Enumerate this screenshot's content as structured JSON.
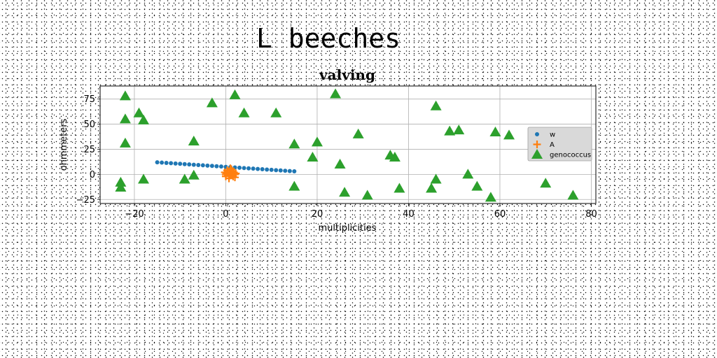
{
  "figure_title": "L beeches",
  "chart_data": {
    "type": "scatter",
    "title": "valving",
    "xlabel": "multiplicities",
    "ylabel": "ohmmeters",
    "xlim": [
      -27.5,
      81
    ],
    "ylim": [
      -29,
      88
    ],
    "xticks": [
      -20,
      0,
      20,
      40,
      60,
      80
    ],
    "yticks": [
      -25,
      0,
      25,
      50,
      75
    ],
    "grid": true,
    "legend_position": "center-right",
    "series": [
      {
        "name": "w",
        "marker": "point",
        "color": "#1f77b4",
        "x": [
          -15,
          -14,
          -13,
          -12,
          -11,
          -10,
          -9,
          -8,
          -7,
          -6,
          -5,
          -4,
          -3,
          -2,
          -1,
          0,
          1,
          2,
          3,
          4,
          5,
          6,
          7,
          8,
          9,
          10,
          11,
          12,
          13,
          14,
          15
        ],
        "y": [
          12,
          11.7,
          11.4,
          11.1,
          10.8,
          10.5,
          10.2,
          9.9,
          9.6,
          9.3,
          9,
          8.7,
          8.4,
          8.1,
          7.8,
          7.5,
          7.2,
          6.9,
          6.6,
          6.3,
          6,
          5.7,
          5.4,
          5.1,
          4.8,
          4.5,
          4.2,
          3.9,
          3.6,
          3.3,
          3
        ]
      },
      {
        "name": "A",
        "marker": "plus",
        "color": "#ff7f0e",
        "x": [
          0,
          0.5,
          1,
          1.5,
          2,
          0,
          1,
          2,
          0.3,
          1.2,
          1.8,
          0.7,
          0.2,
          1.6,
          -0.2,
          2.2,
          1
        ],
        "y": [
          0,
          2,
          1,
          3,
          0,
          -2,
          -1,
          -3,
          4,
          5,
          2,
          -4,
          1,
          -2,
          2,
          1,
          6
        ]
      },
      {
        "name": "genococcus",
        "marker": "triangle",
        "color": "#2ca02c",
        "x": [
          -22,
          -22,
          -22,
          -23,
          -23,
          -19,
          -18,
          -18,
          -9,
          -7,
          -7,
          -3,
          2,
          4,
          11,
          15,
          15,
          19,
          20,
          24,
          25,
          26,
          29,
          31,
          36,
          37,
          38,
          45,
          46,
          46,
          49,
          51,
          53,
          55,
          58,
          59,
          62,
          70,
          76
        ],
        "y": [
          78,
          55,
          31,
          -8,
          -13,
          61,
          54,
          -5,
          -5,
          33,
          -1,
          71,
          79,
          61,
          61,
          30,
          -12,
          17,
          32,
          80,
          10,
          -18,
          40,
          -21,
          19,
          17,
          -14,
          -14,
          68,
          -5,
          43,
          44,
          0,
          -12,
          -23,
          42,
          39,
          -9,
          -21
        ]
      }
    ]
  }
}
